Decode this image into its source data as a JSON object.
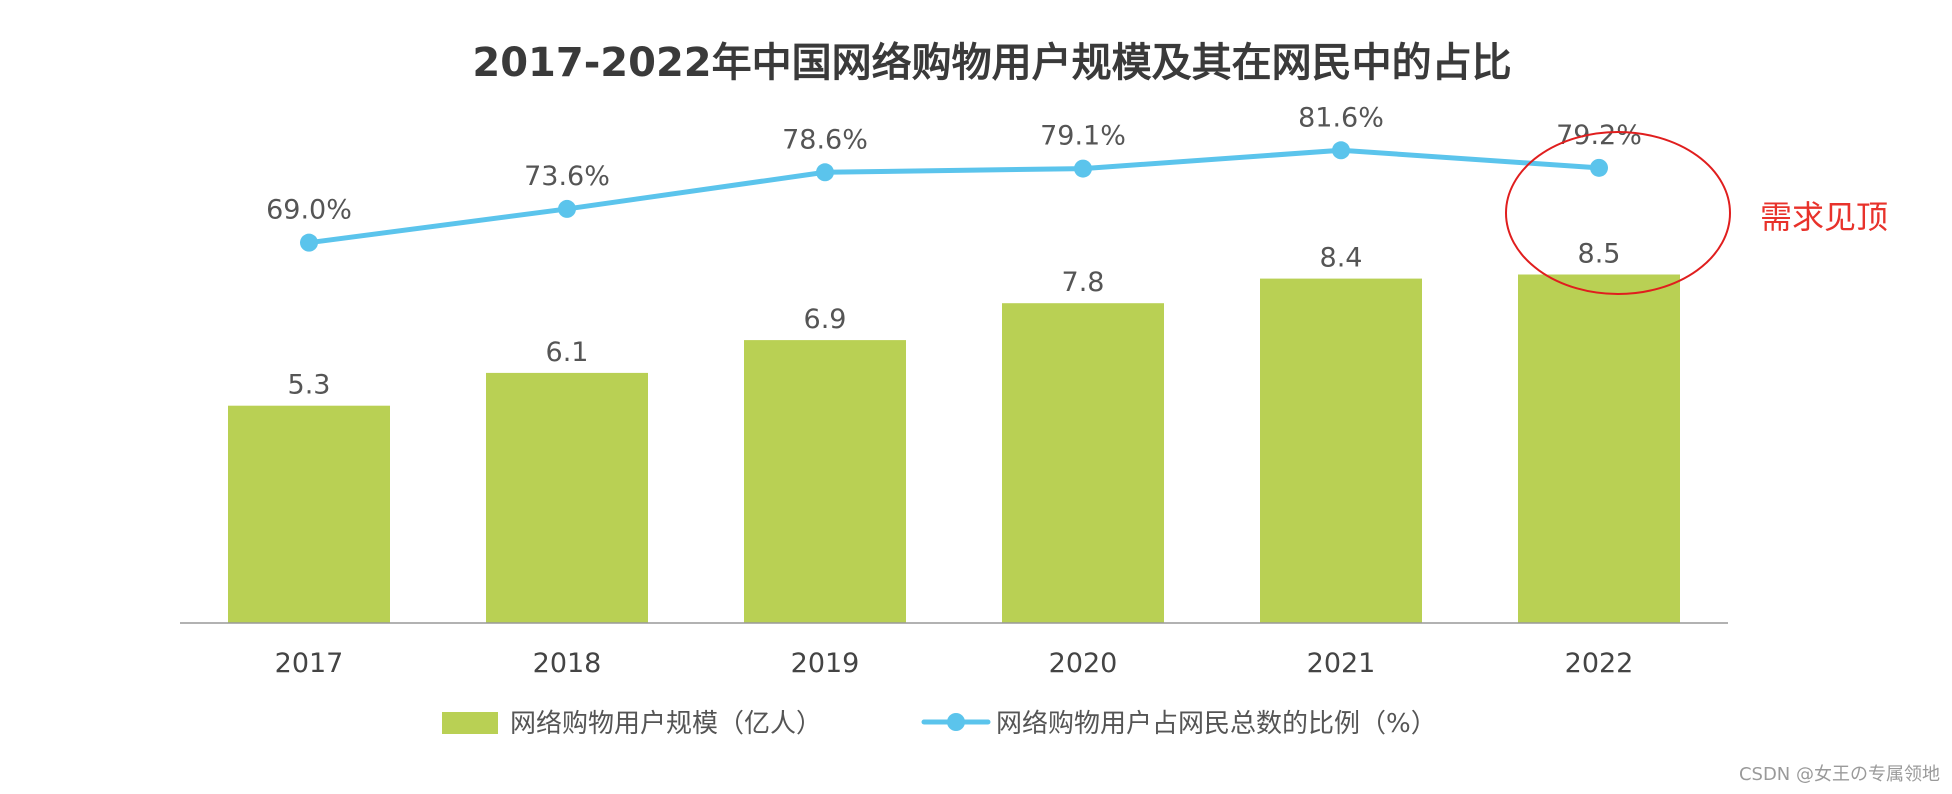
{
  "chart_data": {
    "type": "bar",
    "title": "2017-2022年中国网络购物用户规模及其在网民中的占比",
    "categories": [
      "2017",
      "2018",
      "2019",
      "2020",
      "2021",
      "2022"
    ],
    "series": [
      {
        "name": "网络购物用户规模（亿人）",
        "type": "bar",
        "color": "#b9d054",
        "values": [
          5.3,
          6.1,
          6.9,
          7.8,
          8.4,
          8.5
        ],
        "labels": [
          "5.3",
          "6.1",
          "6.9",
          "7.8",
          "8.4",
          "8.5"
        ]
      },
      {
        "name": "网络购物用户占网民总数的比例（%）",
        "type": "line",
        "color": "#5bc4ec",
        "values": [
          69.0,
          73.6,
          78.6,
          79.1,
          81.6,
          79.2
        ],
        "labels": [
          "69.0%",
          "73.6%",
          "78.6%",
          "79.1%",
          "81.6%",
          "79.2%"
        ]
      }
    ],
    "xlabel": "",
    "ylabel": "",
    "ylim": [
      0,
      13
    ],
    "y2lim": [
      0,
      100
    ],
    "grid": false,
    "legend_position": "bottom",
    "annotation": {
      "text": "需求见顶",
      "color": "#e8322b",
      "target_category": "2022"
    }
  },
  "watermark": "CSDN @女王の专属领地",
  "colors": {
    "axis": "#999999",
    "title": "#3a3a3a"
  }
}
